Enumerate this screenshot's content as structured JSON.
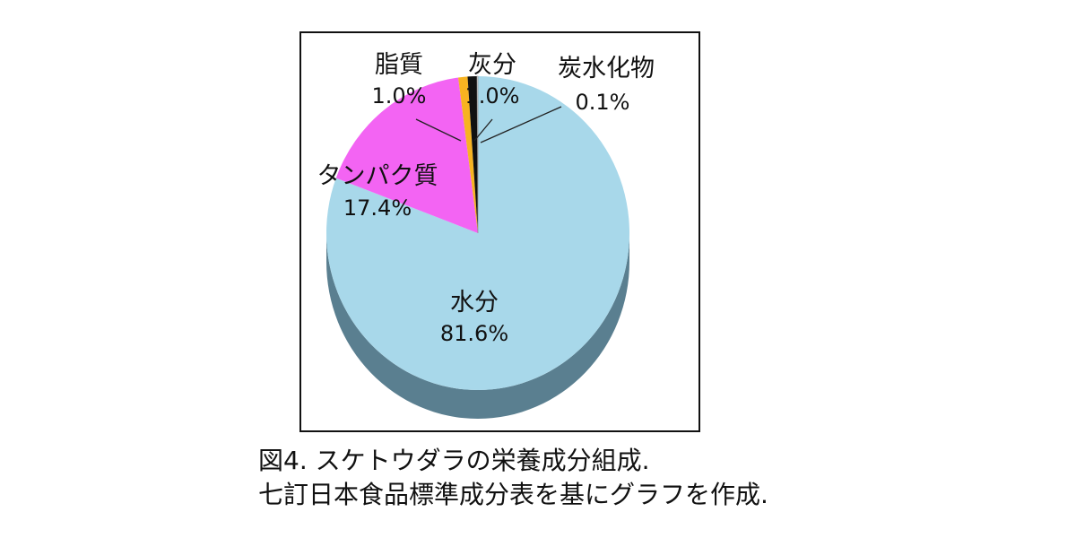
{
  "chart_data": {
    "type": "pie",
    "title": "",
    "slices": [
      {
        "label": "水分",
        "value": 81.6,
        "display": "81.6%",
        "color": "#a8d8ea",
        "side": "#5a7f90"
      },
      {
        "label": "タンパク質",
        "value": 17.4,
        "display": "17.4%",
        "color": "#f364f3",
        "side": "#9a3a9a"
      },
      {
        "label": "脂質",
        "value": 1.0,
        "display": "1.0%",
        "color": "#f7b321",
        "side": "#a07010"
      },
      {
        "label": "灰分",
        "value": 1.0,
        "display": "1.0%",
        "color": "#111111",
        "side": "#000000"
      },
      {
        "label": "炭水化物",
        "value": 0.1,
        "display": "0.1%",
        "color": "#ffffff",
        "side": "#cccccc"
      }
    ]
  },
  "caption": {
    "line1": "図4. スケトウダラの栄養成分組成.",
    "line2": "七訂日本食品標準成分表を基にグラフを作成."
  }
}
